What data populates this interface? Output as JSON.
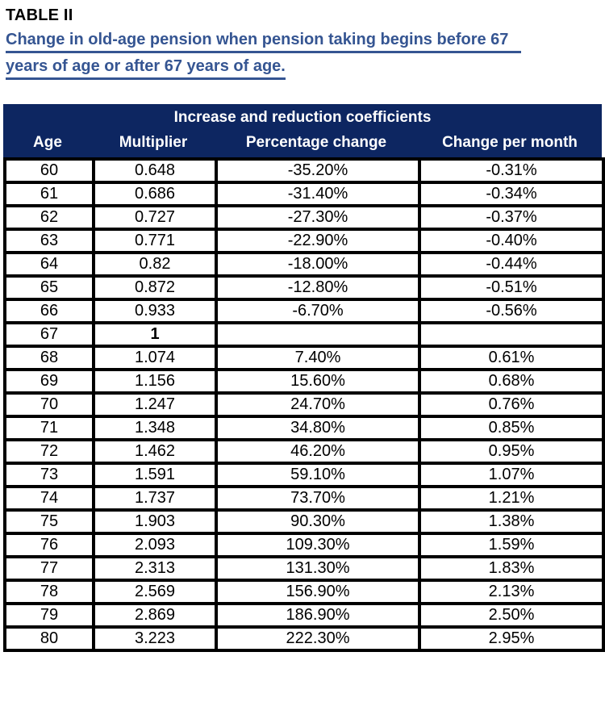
{
  "page": {
    "title": "TABLE II",
    "subtitle_lines": [
      "Change in old-age pension when pension taking begins before 67",
      "years of age or after 67 years of age."
    ]
  },
  "table": {
    "band_header": "Increase and reduction coefficients",
    "columns": [
      "Age",
      "Multiplier",
      "Percentage change",
      "Change per month"
    ],
    "column_keys": [
      "age",
      "multiplier",
      "percentage-change",
      "change-per-month"
    ],
    "rows": [
      [
        "60",
        "0.648",
        "-35.20%",
        "-0.31%"
      ],
      [
        "61",
        "0.686",
        "-31.40%",
        "-0.34%"
      ],
      [
        "62",
        "0.727",
        "-27.30%",
        "-0.37%"
      ],
      [
        "63",
        "0.771",
        "-22.90%",
        "-0.40%"
      ],
      [
        "64",
        "0.82",
        "-18.00%",
        "-0.44%"
      ],
      [
        "65",
        "0.872",
        "-12.80%",
        "-0.51%"
      ],
      [
        "66",
        "0.933",
        "-6.70%",
        "-0.56%"
      ],
      [
        "67",
        "1",
        "",
        ""
      ],
      [
        "68",
        "1.074",
        "7.40%",
        "0.61%"
      ],
      [
        "69",
        "1.156",
        "15.60%",
        "0.68%"
      ],
      [
        "70",
        "1.247",
        "24.70%",
        "0.76%"
      ],
      [
        "71",
        "1.348",
        "34.80%",
        "0.85%"
      ],
      [
        "72",
        "1.462",
        "46.20%",
        "0.95%"
      ],
      [
        "73",
        "1.591",
        "59.10%",
        "1.07%"
      ],
      [
        "74",
        "1.737",
        "73.70%",
        "1.21%"
      ],
      [
        "75",
        "1.903",
        "90.30%",
        "1.38%"
      ],
      [
        "76",
        "2.093",
        "109.30%",
        "1.59%"
      ],
      [
        "77",
        "2.313",
        "131.30%",
        "1.83%"
      ],
      [
        "78",
        "2.569",
        "156.90%",
        "2.13%"
      ],
      [
        "79",
        "2.869",
        "186.90%",
        "2.50%"
      ],
      [
        "80",
        "3.223",
        "222.30%",
        "2.95%"
      ]
    ],
    "emphasis_cells": [
      [
        7,
        1
      ]
    ]
  },
  "colors": {
    "header_bg": "#0D2661",
    "header_text": "#ffffff",
    "subtitle_text": "#355592",
    "border": "#000000",
    "title_text": "#000000",
    "row_bg": "#ffffff"
  }
}
